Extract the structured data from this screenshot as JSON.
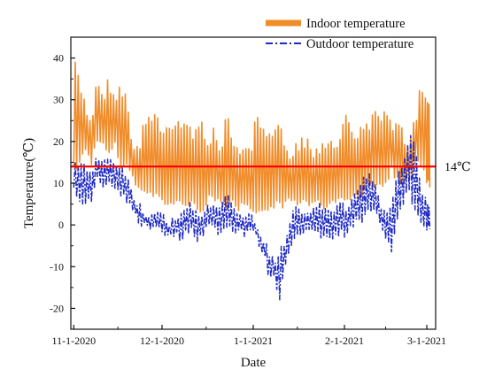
{
  "chart_data": {
    "type": "line",
    "xlabel": "Date",
    "ylabel": "Temperature(℃)",
    "xlim": [
      "2020-10-31",
      "2021-03-04"
    ],
    "ylim": [
      -25,
      45
    ],
    "x_ticks": [
      "11-1-2020",
      "12-1-2020",
      "1-1-2021",
      "2-1-2021",
      "3-1-2021"
    ],
    "y_ticks": [
      -20,
      -10,
      0,
      10,
      20,
      30,
      40
    ],
    "grid": false,
    "legend": "top-right",
    "reference_line": {
      "y": 14,
      "label": "14℃",
      "color": "#ff0000"
    },
    "series": [
      {
        "name": "Indoor temperature",
        "color": "#f08c2a",
        "style": "solid",
        "daily_range": {
          "dates": [
            "2020-11-01",
            "2020-11-03",
            "2020-11-05",
            "2020-11-07",
            "2020-11-09",
            "2020-11-11",
            "2020-11-13",
            "2020-11-15",
            "2020-11-17",
            "2020-11-19",
            "2020-11-21",
            "2020-11-23",
            "2020-11-25",
            "2020-11-27",
            "2020-11-29",
            "2020-12-01",
            "2020-12-03",
            "2020-12-05",
            "2020-12-07",
            "2020-12-09",
            "2020-12-11",
            "2020-12-13",
            "2020-12-15",
            "2020-12-17",
            "2020-12-19",
            "2020-12-21",
            "2020-12-23",
            "2020-12-25",
            "2020-12-27",
            "2020-12-29",
            "2020-12-31",
            "2021-01-02",
            "2021-01-04",
            "2021-01-06",
            "2021-01-08",
            "2021-01-10",
            "2021-01-12",
            "2021-01-14",
            "2021-01-16",
            "2021-01-18",
            "2021-01-20",
            "2021-01-22",
            "2021-01-24",
            "2021-01-26",
            "2021-01-28",
            "2021-01-30",
            "2021-02-01",
            "2021-02-03",
            "2021-02-05",
            "2021-02-07",
            "2021-02-09",
            "2021-02-11",
            "2021-02-13",
            "2021-02-15",
            "2021-02-17",
            "2021-02-19",
            "2021-02-21",
            "2021-02-23",
            "2021-02-25",
            "2021-02-27",
            "2021-03-01",
            "2021-03-02"
          ],
          "max": [
            40,
            36,
            30,
            27,
            37,
            33,
            36,
            33,
            35,
            31,
            22,
            18,
            28,
            27,
            29,
            22,
            27,
            26,
            27,
            27,
            24,
            23,
            26,
            20,
            25,
            20,
            27,
            22,
            21,
            19,
            18,
            27,
            25,
            21,
            25,
            24,
            22,
            19,
            21,
            22,
            22,
            18,
            22,
            22,
            22,
            20,
            29,
            27,
            20,
            26,
            24,
            32,
            28,
            27,
            25,
            25,
            24,
            21,
            26,
            35,
            30,
            30
          ],
          "min": [
            12,
            14,
            17,
            14,
            20,
            18,
            16,
            18,
            13,
            14,
            10,
            8,
            8,
            6,
            7,
            5,
            4,
            4,
            5,
            4,
            4,
            3,
            3,
            6,
            4,
            5,
            4,
            5,
            3,
            4,
            2,
            1,
            3,
            2,
            4,
            4,
            4,
            5,
            4,
            5,
            4,
            5,
            3,
            4,
            4,
            6,
            5,
            6,
            6,
            6,
            8,
            9,
            8,
            10,
            12,
            10,
            8,
            10,
            13,
            14,
            10,
            9
          ]
        }
      },
      {
        "name": "Outdoor temperature",
        "color": "#1f2bc4",
        "style": "dash-dot",
        "daily_range": {
          "dates": [
            "2020-11-01",
            "2020-11-03",
            "2020-11-05",
            "2020-11-07",
            "2020-11-09",
            "2020-11-11",
            "2020-11-13",
            "2020-11-15",
            "2020-11-17",
            "2020-11-19",
            "2020-11-21",
            "2020-11-23",
            "2020-11-25",
            "2020-11-27",
            "2020-11-29",
            "2020-12-01",
            "2020-12-03",
            "2020-12-05",
            "2020-12-07",
            "2020-12-09",
            "2020-12-11",
            "2020-12-13",
            "2020-12-15",
            "2020-12-17",
            "2020-12-19",
            "2020-12-21",
            "2020-12-23",
            "2020-12-25",
            "2020-12-27",
            "2020-12-29",
            "2020-12-31",
            "2021-01-02",
            "2021-01-04",
            "2021-01-06",
            "2021-01-08",
            "2021-01-10",
            "2021-01-12",
            "2021-01-14",
            "2021-01-16",
            "2021-01-18",
            "2021-01-20",
            "2021-01-22",
            "2021-01-24",
            "2021-01-26",
            "2021-01-28",
            "2021-01-30",
            "2021-02-01",
            "2021-02-03",
            "2021-02-05",
            "2021-02-07",
            "2021-02-09",
            "2021-02-11",
            "2021-02-13",
            "2021-02-15",
            "2021-02-17",
            "2021-02-19",
            "2021-02-21",
            "2021-02-23",
            "2021-02-25",
            "2021-02-27",
            "2021-03-01",
            "2021-03-02"
          ],
          "max": [
            16,
            16,
            14,
            13,
            18,
            16,
            17,
            16,
            15,
            13,
            8,
            6,
            4,
            3,
            5,
            4,
            1,
            3,
            2,
            5,
            6,
            3,
            4,
            6,
            6,
            5,
            8,
            6,
            4,
            3,
            5,
            1,
            -2,
            -5,
            -8,
            -5,
            -4,
            3,
            5,
            4,
            4,
            6,
            5,
            5,
            3,
            6,
            5,
            6,
            10,
            11,
            13,
            12,
            6,
            4,
            6,
            14,
            16,
            22,
            20,
            10,
            6,
            5
          ],
          "min": [
            8,
            5,
            5,
            4,
            10,
            8,
            9,
            7,
            6,
            5,
            2,
            0,
            -1,
            -2,
            -1,
            -2,
            -4,
            -3,
            -4,
            -3,
            -2,
            -4,
            -3,
            -1,
            -2,
            -3,
            -1,
            -2,
            -2,
            -3,
            -2,
            -4,
            -7,
            -12,
            -14,
            -18,
            -10,
            -5,
            -4,
            -3,
            -3,
            -2,
            -4,
            -3,
            -4,
            -3,
            -3,
            -2,
            1,
            0,
            2,
            3,
            -1,
            -5,
            -7,
            1,
            4,
            8,
            2,
            -1,
            -2,
            -1
          ]
        }
      }
    ]
  }
}
